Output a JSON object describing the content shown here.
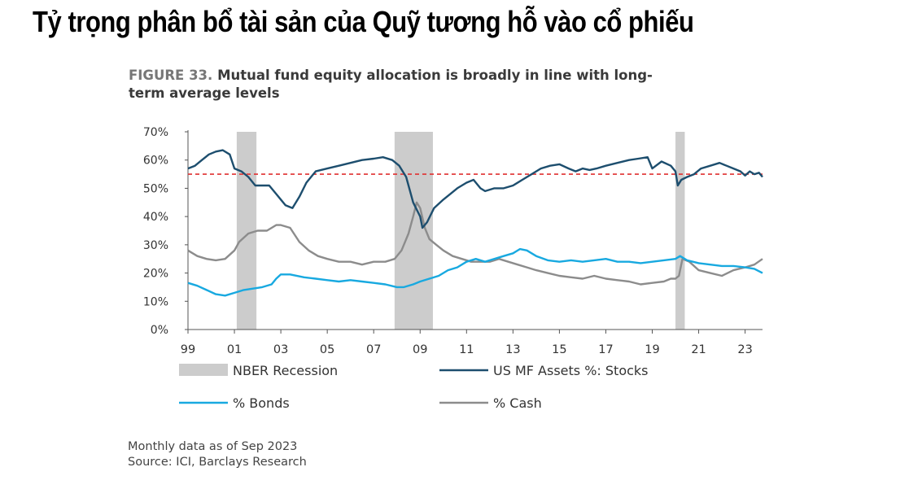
{
  "heading": "Tỷ trọng phân bổ tài sản của Quỹ tương hỗ vào cổ phiếu",
  "figure": {
    "label": "FIGURE 33.",
    "title": "Mutual fund equity allocation is broadly in line with long-term average levels",
    "title_line1": "Mutual fund equity allocation is broadly in line with long-",
    "title_line2": "term average levels"
  },
  "footnote": {
    "line1": "Monthly data as of Sep 2023",
    "line2": "Source: ICI, Barclays Research"
  },
  "colors": {
    "stocks": "#1d4e6e",
    "bonds": "#18a9e0",
    "cash": "#8c8c8c",
    "recession": "#cccccc",
    "average": "#e03030"
  },
  "chart_data": {
    "type": "line",
    "x_range": [
      1999.0,
      2023.75
    ],
    "y_range": [
      0,
      70
    ],
    "y_ticks": [
      "0%",
      "10%",
      "20%",
      "30%",
      "40%",
      "50%",
      "60%",
      "70%"
    ],
    "x_ticks": [
      "99",
      "01",
      "03",
      "05",
      "07",
      "09",
      "11",
      "13",
      "15",
      "17",
      "19",
      "21",
      "23"
    ],
    "average_line": 55,
    "recessions": [
      {
        "start": 2001.1,
        "end": 2001.95
      },
      {
        "start": 2007.9,
        "end": 2009.55
      },
      {
        "start": 2020.0,
        "end": 2020.4
      }
    ],
    "legend": [
      {
        "key": "recession",
        "label": "NBER Recession"
      },
      {
        "key": "stocks",
        "label": "US MF Assets %: Stocks"
      },
      {
        "key": "bonds",
        "label": "% Bonds"
      },
      {
        "key": "cash",
        "label": "% Cash"
      }
    ],
    "series": [
      {
        "key": "stocks",
        "name": "US MF Assets %: Stocks",
        "x": [
          1999.0,
          1999.3,
          1999.6,
          1999.9,
          2000.2,
          2000.5,
          2000.8,
          2001.0,
          2001.3,
          2001.6,
          2001.9,
          2002.2,
          2002.5,
          2002.8,
          2003.0,
          2003.2,
          2003.5,
          2003.8,
          2004.1,
          2004.5,
          2005.0,
          2005.5,
          2006.0,
          2006.5,
          2007.0,
          2007.4,
          2007.8,
          2008.1,
          2008.4,
          2008.7,
          2009.0,
          2009.1,
          2009.3,
          2009.6,
          2010.0,
          2010.3,
          2010.6,
          2011.0,
          2011.3,
          2011.6,
          2011.8,
          2012.2,
          2012.6,
          2013.0,
          2013.4,
          2013.8,
          2014.2,
          2014.6,
          2015.0,
          2015.4,
          2015.7,
          2016.0,
          2016.3,
          2016.6,
          2017.0,
          2017.5,
          2018.0,
          2018.4,
          2018.8,
          2019.0,
          2019.4,
          2019.8,
          2020.0,
          2020.1,
          2020.25,
          2020.5,
          2020.8,
          2021.1,
          2021.5,
          2021.9,
          2022.2,
          2022.5,
          2022.8,
          2023.0,
          2023.2,
          2023.4,
          2023.6,
          2023.75
        ],
        "y": [
          57,
          58,
          60,
          62,
          63,
          63.5,
          62,
          57,
          56,
          54,
          51,
          51,
          51,
          48,
          46,
          44,
          43,
          47,
          52,
          56,
          57,
          58,
          59,
          60,
          60.5,
          61,
          60,
          58,
          54,
          45,
          40,
          36,
          38,
          43,
          46,
          48,
          50,
          52,
          53,
          50,
          49,
          50,
          50,
          51,
          53,
          55,
          57,
          58,
          58.5,
          57,
          56,
          57,
          56.5,
          57,
          58,
          59,
          60,
          60.5,
          61,
          57,
          59.5,
          58,
          56,
          51,
          53,
          54,
          55,
          57,
          58,
          59,
          58,
          57,
          56,
          54.5,
          56,
          55,
          55.5,
          54
        ]
      },
      {
        "key": "bonds",
        "name": "% Bonds",
        "x": [
          1999.0,
          1999.4,
          1999.8,
          2000.2,
          2000.6,
          2001.0,
          2001.4,
          2001.8,
          2002.2,
          2002.6,
          2002.8,
          2003.0,
          2003.4,
          2004.0,
          2004.5,
          2005.0,
          2005.5,
          2006.0,
          2006.5,
          2007.0,
          2007.5,
          2008.0,
          2008.3,
          2008.7,
          2009.0,
          2009.4,
          2009.8,
          2010.2,
          2010.6,
          2011.0,
          2011.4,
          2011.8,
          2012.2,
          2012.6,
          2013.0,
          2013.3,
          2013.6,
          2014.0,
          2014.5,
          2015.0,
          2015.5,
          2016.0,
          2016.5,
          2017.0,
          2017.5,
          2018.0,
          2018.5,
          2019.0,
          2019.5,
          2020.0,
          2020.2,
          2020.5,
          2021.0,
          2021.5,
          2022.0,
          2022.5,
          2023.0,
          2023.4,
          2023.75
        ],
        "y": [
          16.5,
          15.5,
          14,
          12.5,
          12,
          13,
          14,
          14.5,
          15,
          16,
          18,
          19.5,
          19.5,
          18.5,
          18,
          17.5,
          17,
          17.5,
          17,
          16.5,
          16,
          15,
          15,
          16,
          17,
          18,
          19,
          21,
          22,
          24,
          25,
          24,
          25,
          26,
          27,
          28.5,
          28,
          26,
          24.5,
          24,
          24.5,
          24,
          24.5,
          25,
          24,
          24,
          23.5,
          24,
          24.5,
          25,
          26,
          24.5,
          23.5,
          23,
          22.5,
          22.5,
          22,
          21.5,
          20
        ]
      },
      {
        "key": "cash",
        "name": "% Cash",
        "x": [
          1999.0,
          1999.4,
          1999.8,
          2000.2,
          2000.6,
          2001.0,
          2001.2,
          2001.6,
          2002.0,
          2002.4,
          2002.8,
          2003.0,
          2003.4,
          2003.8,
          2004.2,
          2004.6,
          2005.0,
          2005.5,
          2006.0,
          2006.5,
          2007.0,
          2007.5,
          2007.9,
          2008.2,
          2008.5,
          2008.7,
          2008.85,
          2009.0,
          2009.2,
          2009.4,
          2009.7,
          2010.0,
          2010.4,
          2010.8,
          2011.2,
          2011.6,
          2012.0,
          2012.4,
          2012.8,
          2013.2,
          2013.6,
          2014.0,
          2014.5,
          2015.0,
          2015.5,
          2016.0,
          2016.5,
          2017.0,
          2017.5,
          2018.0,
          2018.5,
          2019.0,
          2019.5,
          2019.8,
          2020.0,
          2020.15,
          2020.3,
          2020.6,
          2021.0,
          2021.5,
          2022.0,
          2022.5,
          2023.0,
          2023.4,
          2023.75
        ],
        "y": [
          28,
          26,
          25,
          24.5,
          25,
          28,
          31,
          34,
          35,
          35,
          37,
          37,
          36,
          31,
          28,
          26,
          25,
          24,
          24,
          23,
          24,
          24,
          25,
          28,
          34,
          40,
          45,
          43,
          36,
          32,
          30,
          28,
          26,
          25,
          24,
          24,
          24,
          25,
          24,
          23,
          22,
          21,
          20,
          19,
          18.5,
          18,
          19,
          18,
          17.5,
          17,
          16,
          16.5,
          17,
          18,
          18,
          19,
          25,
          24,
          21,
          20,
          19,
          21,
          22,
          23,
          25
        ]
      }
    ]
  }
}
